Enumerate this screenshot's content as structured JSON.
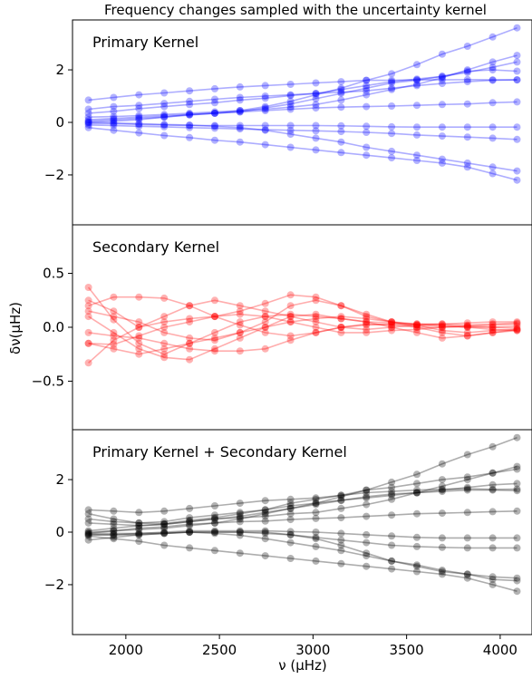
{
  "title": "Frequency changes sampled with the uncertainty kernel",
  "xlabel": "ν (μHz)",
  "ylabel": "δν(μHz)",
  "chart_data": {
    "type": "line",
    "title": "Frequency changes sampled with the uncertainty kernel",
    "xlabel": "ν (μHz)",
    "ylabel": "δν(μHz)",
    "shared_x": [
      1800,
      1935,
      2070,
      2205,
      2340,
      2475,
      2610,
      2745,
      2880,
      3015,
      3150,
      3285,
      3420,
      3555,
      3690,
      3825,
      3960,
      4090
    ],
    "xlim": [
      1715,
      4170
    ],
    "xticks": [
      2000,
      2500,
      3000,
      3500,
      4000
    ],
    "grid": false,
    "panels": [
      {
        "name": "Primary Kernel",
        "color": "#0000ff",
        "ylim": [
          -3.9,
          3.9
        ],
        "yticks": [
          -2,
          0,
          2
        ],
        "series": [
          {
            "values": [
              0.85,
              0.95,
              1.05,
              1.12,
              1.2,
              1.28,
              1.35,
              1.4,
              1.45,
              1.5,
              1.55,
              1.6,
              1.6,
              1.62,
              1.62,
              1.63,
              1.62,
              1.62
            ]
          },
          {
            "values": [
              0.5,
              0.6,
              0.65,
              0.72,
              0.8,
              0.88,
              0.95,
              1.0,
              1.05,
              1.1,
              1.15,
              1.2,
              1.3,
              1.4,
              1.48,
              1.55,
              1.6,
              1.62
            ]
          },
          {
            "values": [
              0.35,
              0.42,
              0.52,
              0.6,
              0.68,
              0.75,
              0.85,
              0.92,
              1.02,
              1.1,
              1.25,
              1.4,
              1.55,
              1.65,
              1.75,
              1.9,
              2.1,
              2.3
            ]
          },
          {
            "values": [
              0.2,
              0.22,
              0.26,
              0.3,
              0.35,
              0.4,
              0.45,
              0.5,
              0.58,
              0.68,
              0.85,
              1.05,
              1.25,
              1.45,
              1.7,
              2.0,
              2.3,
              2.55
            ]
          },
          {
            "values": [
              0.05,
              0.1,
              0.15,
              0.2,
              0.28,
              0.35,
              0.45,
              0.6,
              0.8,
              1.05,
              1.3,
              1.6,
              1.85,
              2.2,
              2.6,
              2.9,
              3.25,
              3.6
            ]
          },
          {
            "values": [
              0.0,
              0.05,
              0.1,
              0.2,
              0.3,
              0.35,
              0.4,
              0.55,
              0.7,
              0.9,
              1.1,
              1.3,
              1.5,
              1.6,
              1.75,
              1.95,
              2.0,
              1.95
            ]
          },
          {
            "values": [
              0.1,
              0.15,
              0.2,
              0.25,
              0.3,
              0.35,
              0.4,
              0.45,
              0.5,
              0.55,
              0.58,
              0.6,
              0.62,
              0.65,
              0.68,
              0.7,
              0.75,
              0.78
            ]
          },
          {
            "values": [
              -0.05,
              -0.05,
              -0.08,
              -0.1,
              -0.12,
              -0.12,
              -0.12,
              -0.12,
              -0.12,
              -0.12,
              -0.13,
              -0.15,
              -0.17,
              -0.18,
              -0.18,
              -0.18,
              -0.18,
              -0.18
            ]
          },
          {
            "values": [
              -0.1,
              -0.12,
              -0.15,
              -0.17,
              -0.2,
              -0.22,
              -0.25,
              -0.28,
              -0.3,
              -0.32,
              -0.35,
              -0.38,
              -0.42,
              -0.48,
              -0.52,
              -0.56,
              -0.6,
              -0.65
            ]
          },
          {
            "values": [
              0.0,
              -0.02,
              -0.05,
              -0.08,
              -0.1,
              -0.15,
              -0.2,
              -0.3,
              -0.45,
              -0.6,
              -0.75,
              -0.95,
              -1.1,
              -1.25,
              -1.4,
              -1.55,
              -1.7,
              -1.85
            ]
          },
          {
            "values": [
              -0.2,
              -0.3,
              -0.4,
              -0.5,
              -0.58,
              -0.68,
              -0.75,
              -0.85,
              -0.95,
              -1.05,
              -1.15,
              -1.25,
              -1.35,
              -1.45,
              -1.55,
              -1.7,
              -1.95,
              -2.2
            ]
          }
        ]
      },
      {
        "name": "Secondary Kernel",
        "color": "#ff0000",
        "ylim": [
          -0.95,
          0.95
        ],
        "yticks": [
          -0.5,
          0.0,
          0.5
        ],
        "series": [
          {
            "values": [
              0.37,
              0.07,
              -0.15,
              -0.25,
              -0.15,
              -0.05,
              0.05,
              0.1,
              0.12,
              0.1,
              0.08,
              0.05,
              0.04,
              0.03,
              0.03,
              0.02,
              0.03,
              0.04
            ]
          },
          {
            "values": [
              0.25,
              0.15,
              0.0,
              0.1,
              0.2,
              0.25,
              0.2,
              0.15,
              0.1,
              0.05,
              0.0,
              -0.02,
              0.0,
              0.02,
              0.03,
              0.04,
              0.05,
              0.05
            ]
          },
          {
            "values": [
              0.2,
              0.28,
              0.28,
              0.27,
              0.2,
              0.1,
              0.02,
              -0.05,
              -0.08,
              -0.05,
              0.0,
              0.03,
              0.02,
              0.0,
              0.0,
              0.01,
              0.02,
              0.03
            ]
          },
          {
            "values": [
              0.15,
              0.1,
              0.05,
              -0.05,
              -0.1,
              -0.12,
              -0.05,
              0.05,
              0.2,
              0.25,
              0.2,
              0.1,
              0.05,
              0.02,
              -0.03,
              -0.05,
              -0.03,
              -0.02
            ]
          },
          {
            "values": [
              0.1,
              -0.05,
              -0.2,
              -0.28,
              -0.3,
              -0.2,
              -0.1,
              0.0,
              0.1,
              0.12,
              0.08,
              0.05,
              0.0,
              -0.05,
              -0.1,
              -0.08,
              -0.05,
              -0.03
            ]
          },
          {
            "values": [
              -0.15,
              -0.16,
              -0.08,
              0.0,
              0.05,
              0.1,
              0.15,
              0.22,
              0.3,
              0.28,
              0.2,
              0.12,
              0.05,
              0.0,
              -0.05,
              -0.08,
              -0.05,
              -0.02
            ]
          },
          {
            "values": [
              -0.15,
              -0.2,
              -0.25,
              -0.2,
              -0.15,
              -0.1,
              -0.05,
              0.0,
              0.05,
              0.08,
              0.1,
              0.08,
              0.05,
              0.03,
              0.02,
              0.0,
              -0.02,
              -0.03
            ]
          },
          {
            "values": [
              -0.33,
              -0.12,
              0.0,
              0.05,
              0.08,
              0.1,
              0.12,
              0.1,
              0.05,
              0.0,
              -0.05,
              -0.05,
              -0.03,
              -0.02,
              0.0,
              0.01,
              0.0,
              -0.01
            ]
          },
          {
            "values": [
              -0.05,
              -0.08,
              -0.1,
              -0.15,
              -0.2,
              -0.22,
              -0.22,
              -0.2,
              -0.12,
              -0.05,
              0.0,
              0.02,
              0.03,
              0.02,
              0.01,
              0.0,
              0.0,
              0.01
            ]
          }
        ]
      },
      {
        "name": "Primary Kernel + Secondary Kernel",
        "color": "#000000",
        "ylim": [
          -3.9,
          3.9
        ],
        "yticks": [
          -2,
          0,
          2
        ],
        "series": [
          {
            "values": [
              0.85,
              0.8,
              0.75,
              0.8,
              0.9,
              1.0,
              1.1,
              1.2,
              1.25,
              1.3,
              1.4,
              1.5,
              1.55,
              1.6,
              1.63,
              1.65,
              1.63,
              1.64
            ]
          },
          {
            "values": [
              0.5,
              0.4,
              0.35,
              0.4,
              0.55,
              0.65,
              0.75,
              0.85,
              1.0,
              1.1,
              1.22,
              1.3,
              1.4,
              1.5,
              1.6,
              1.7,
              1.8,
              1.85
            ]
          },
          {
            "values": [
              0.7,
              0.5,
              0.35,
              0.32,
              0.45,
              0.55,
              0.7,
              0.85,
              1.1,
              1.25,
              1.4,
              1.6,
              1.7,
              1.85,
              2.0,
              2.1,
              2.25,
              2.4
            ]
          },
          {
            "values": [
              0.35,
              0.3,
              0.25,
              0.3,
              0.4,
              0.5,
              0.55,
              0.6,
              0.7,
              0.75,
              0.9,
              1.05,
              1.25,
              1.5,
              1.75,
              2.0,
              2.25,
              2.5
            ]
          },
          {
            "values": [
              0.0,
              0.05,
              0.1,
              0.15,
              0.25,
              0.35,
              0.5,
              0.7,
              0.9,
              1.1,
              1.35,
              1.6,
              1.9,
              2.2,
              2.6,
              2.95,
              3.25,
              3.6
            ]
          },
          {
            "values": [
              0.05,
              0.15,
              0.25,
              0.3,
              0.4,
              0.5,
              0.6,
              0.75,
              0.9,
              1.05,
              1.2,
              1.35,
              1.45,
              1.5,
              1.55,
              1.6,
              1.6,
              1.58
            ]
          },
          {
            "values": [
              -0.05,
              0.05,
              0.15,
              0.2,
              0.3,
              0.35,
              0.4,
              0.42,
              0.48,
              0.52,
              0.55,
              0.6,
              0.65,
              0.7,
              0.72,
              0.75,
              0.78,
              0.8
            ]
          },
          {
            "values": [
              -0.1,
              -0.1,
              -0.05,
              0.0,
              0.05,
              0.05,
              0.05,
              0.05,
              0.02,
              0.0,
              -0.05,
              -0.1,
              -0.15,
              -0.2,
              -0.22,
              -0.22,
              -0.22,
              -0.22
            ]
          },
          {
            "values": [
              -0.1,
              -0.1,
              -0.1,
              -0.05,
              0.0,
              0.0,
              0.0,
              -0.05,
              -0.1,
              -0.2,
              -0.3,
              -0.4,
              -0.5,
              -0.55,
              -0.58,
              -0.6,
              -0.6,
              -0.6
            ]
          },
          {
            "values": [
              -0.05,
              -0.05,
              -0.05,
              -0.03,
              0.0,
              -0.05,
              -0.12,
              -0.25,
              -0.4,
              -0.55,
              -0.7,
              -0.9,
              -1.1,
              -1.25,
              -1.45,
              -1.6,
              -1.8,
              -1.85
            ]
          },
          {
            "values": [
              -0.15,
              -0.25,
              -0.35,
              -0.5,
              -0.6,
              -0.7,
              -0.8,
              -0.9,
              -1.0,
              -1.1,
              -1.2,
              -1.3,
              -1.4,
              -1.5,
              -1.6,
              -1.75,
              -2.0,
              -2.25
            ]
          },
          {
            "values": [
              -0.3,
              -0.2,
              -0.1,
              -0.05,
              0.0,
              0.0,
              0.0,
              0.0,
              -0.1,
              -0.25,
              -0.5,
              -0.8,
              -1.1,
              -1.3,
              -1.5,
              -1.6,
              -1.7,
              -1.75
            ]
          }
        ]
      }
    ]
  }
}
